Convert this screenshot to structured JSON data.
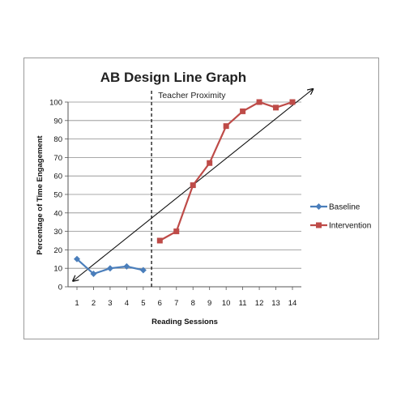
{
  "chart_data": {
    "type": "line",
    "title": "AB Design Line Graph",
    "xlabel": "Reading Sessions",
    "ylabel": "Percentage of Time Engagement",
    "x": [
      1,
      2,
      3,
      4,
      5,
      6,
      7,
      8,
      9,
      10,
      11,
      12,
      13,
      14
    ],
    "ylim": [
      0,
      100
    ],
    "yticks": [
      0,
      10,
      20,
      30,
      40,
      50,
      60,
      70,
      80,
      90,
      100
    ],
    "grid": true,
    "legend_position": "right",
    "phase_change": {
      "after_x": 5.5,
      "label": "Teacher Proximity"
    },
    "trend_line": {
      "from": [
        1,
        4
      ],
      "to": [
        15,
        108
      ]
    },
    "series": [
      {
        "name": "Baseline",
        "color": "#4a7ebb",
        "marker": "diamond",
        "x": [
          1,
          2,
          3,
          4,
          5
        ],
        "values": [
          15,
          7,
          10,
          11,
          9
        ]
      },
      {
        "name": "Intervention",
        "color": "#be4b48",
        "marker": "square",
        "x": [
          6,
          7,
          8,
          9,
          10,
          11,
          12,
          13,
          14
        ],
        "values": [
          25,
          30,
          55,
          67,
          87,
          95,
          100,
          97,
          100
        ]
      }
    ]
  }
}
